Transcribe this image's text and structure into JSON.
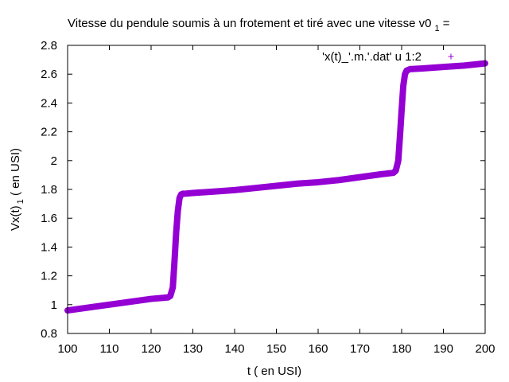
{
  "chart_data": {
    "type": "scatter",
    "title": "Vitesse du pendule soumis à un frotement et tiré avec une vitesse v0",
    "title_sub": "1",
    "title_tail": " =",
    "xlabel": "t ( en USI)",
    "ylabel_main": "Vx(t)",
    "ylabel_sub": "1",
    "ylabel_tail": " ( en USI)",
    "xlim": [
      100,
      200
    ],
    "ylim": [
      0.8,
      2.8
    ],
    "x_ticks": [
      100,
      110,
      120,
      130,
      140,
      150,
      160,
      170,
      180,
      190,
      200
    ],
    "y_ticks": [
      "0.8",
      "1",
      "1.2",
      "1.4",
      "1.6",
      "1.8",
      "2",
      "2.2",
      "2.4",
      "2.6",
      "2.8"
    ],
    "grid": false,
    "legend_position": "top-right",
    "series": [
      {
        "name": "'x(t)_'.m.'.dat' u 1:2",
        "marker": "+",
        "color": "#9400d3",
        "x": [
          100,
          105,
          110,
          115,
          120,
          124,
          124.6,
          125.2,
          125.6,
          126.0,
          126.4,
          126.8,
          127.2,
          127.6,
          128,
          130,
          135,
          140,
          145,
          150,
          155,
          160,
          165,
          170,
          175,
          178,
          178.6,
          179.2,
          179.6,
          180.0,
          180.4,
          180.8,
          181.2,
          181.6,
          182,
          185,
          190,
          195,
          200
        ],
        "y": [
          0.96,
          0.98,
          1.0,
          1.02,
          1.04,
          1.05,
          1.06,
          1.12,
          1.3,
          1.5,
          1.65,
          1.74,
          1.765,
          1.77,
          1.77,
          1.775,
          1.785,
          1.795,
          1.81,
          1.825,
          1.84,
          1.85,
          1.865,
          1.885,
          1.905,
          1.915,
          1.93,
          2.0,
          2.17,
          2.35,
          2.52,
          2.6,
          2.625,
          2.63,
          2.635,
          2.64,
          2.65,
          2.66,
          2.675
        ]
      }
    ]
  }
}
